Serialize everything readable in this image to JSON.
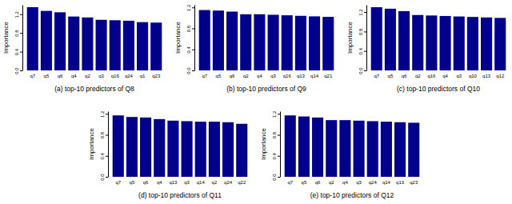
{
  "chart_data": [
    {
      "type": "bar",
      "title": "(a) top-10 predictors of Q8",
      "y_label": "Importance",
      "categories": [
        "q7",
        "q5",
        "q6",
        "q4",
        "q2",
        "q3",
        "q16",
        "q24",
        "q1",
        "q23"
      ],
      "values": [
        1.35,
        1.27,
        1.24,
        1.15,
        1.13,
        1.08,
        1.07,
        1.06,
        1.03,
        1.02
      ],
      "color": "#00008b",
      "ylim": [
        0,
        1.4
      ],
      "yticks": [
        {
          "value": 0,
          "label": "0.0"
        },
        {
          "value": 0.4,
          "label": "0.4"
        },
        {
          "value": 0.8,
          "label": "0.8"
        },
        {
          "value": 1.2,
          "label": "1.2"
        }
      ]
    },
    {
      "type": "bar",
      "title": "(b) top-10 predictors of Q9",
      "y_label": "Importance",
      "categories": [
        "q7",
        "q5",
        "q6",
        "q2",
        "q4",
        "q3",
        "q16",
        "q13",
        "q14",
        "q21"
      ],
      "values": [
        1.15,
        1.14,
        1.12,
        1.07,
        1.07,
        1.06,
        1.05,
        1.04,
        1.03,
        1.02
      ],
      "color": "#00008b",
      "ylim": [
        0,
        1.25
      ],
      "yticks": [
        {
          "value": 0,
          "label": "0.0"
        },
        {
          "value": 0.4,
          "label": "0.4"
        },
        {
          "value": 0.8,
          "label": "0.8"
        },
        {
          "value": 1.2,
          "label": "1.2"
        }
      ]
    },
    {
      "type": "bar",
      "title": "(c) top-10 predictors of Q10",
      "y_label": "Importance",
      "categories": [
        "q7",
        "q5",
        "q6",
        "q2",
        "q16",
        "q4",
        "q3",
        "q10",
        "q13",
        "q12"
      ],
      "values": [
        1.3,
        1.27,
        1.22,
        1.14,
        1.13,
        1.12,
        1.11,
        1.1,
        1.09,
        1.08
      ],
      "color": "#00008b",
      "ylim": [
        0,
        1.35
      ],
      "yticks": [
        {
          "value": 0,
          "label": "0.0"
        },
        {
          "value": 0.4,
          "label": "0.4"
        },
        {
          "value": 0.8,
          "label": "0.8"
        },
        {
          "value": 1.2,
          "label": "1.2"
        }
      ]
    },
    {
      "type": "bar",
      "title": "(d) top-10 predictors of Q11",
      "y_label": "Importance",
      "categories": [
        "q7",
        "q5",
        "q6",
        "q4",
        "q13",
        "q3",
        "q14",
        "q2",
        "q24",
        "q22"
      ],
      "values": [
        1.17,
        1.14,
        1.13,
        1.1,
        1.07,
        1.06,
        1.05,
        1.05,
        1.04,
        1.01
      ],
      "color": "#00008b",
      "ylim": [
        0,
        1.25
      ],
      "yticks": [
        {
          "value": 0,
          "label": "0.0"
        },
        {
          "value": 0.4,
          "label": "0.4"
        },
        {
          "value": 0.8,
          "label": "0.8"
        },
        {
          "value": 1.2,
          "label": "1.2"
        }
      ]
    },
    {
      "type": "bar",
      "title": "(e) top-10 predictors of Q12",
      "y_label": "Importance",
      "categories": [
        "q7",
        "q5",
        "q6",
        "q2",
        "q4",
        "q3",
        "q24",
        "q14",
        "q13",
        "q23"
      ],
      "values": [
        1.17,
        1.15,
        1.13,
        1.08,
        1.08,
        1.07,
        1.06,
        1.05,
        1.04,
        1.03
      ],
      "color": "#00008b",
      "ylim": [
        0,
        1.25
      ],
      "yticks": [
        {
          "value": 0,
          "label": "0.0"
        },
        {
          "value": 0.4,
          "label": "0.4"
        },
        {
          "value": 0.8,
          "label": "0.8"
        },
        {
          "value": 1.2,
          "label": "1.2"
        }
      ]
    }
  ]
}
